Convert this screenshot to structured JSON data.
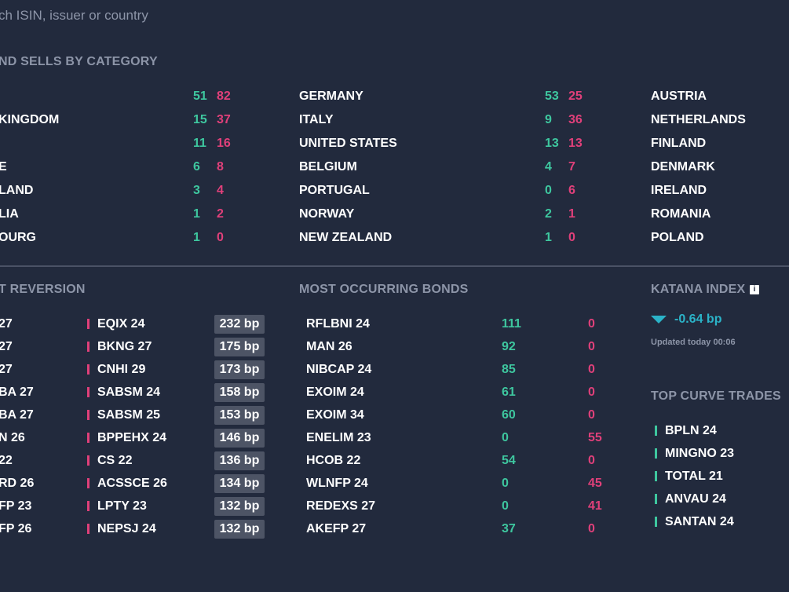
{
  "search": {
    "placeholder": "ch ISIN, issuer or country"
  },
  "categories": {
    "title": "ND SELLS BY CATEGORY",
    "col1": [
      {
        "name": "",
        "buys": "51",
        "sells": "82"
      },
      {
        "name": "KINGDOM",
        "buys": "15",
        "sells": "37"
      },
      {
        "name": "",
        "buys": "11",
        "sells": "16"
      },
      {
        "name": "E",
        "buys": "6",
        "sells": "8"
      },
      {
        "name": "LAND",
        "buys": "3",
        "sells": "4"
      },
      {
        "name": "LIA",
        "buys": "1",
        "sells": "2"
      },
      {
        "name": "OURG",
        "buys": "1",
        "sells": "0"
      }
    ],
    "col2": [
      {
        "name": "GERMANY",
        "buys": "53",
        "sells": "25"
      },
      {
        "name": "ITALY",
        "buys": "9",
        "sells": "36"
      },
      {
        "name": "UNITED STATES",
        "buys": "13",
        "sells": "13"
      },
      {
        "name": "BELGIUM",
        "buys": "4",
        "sells": "7"
      },
      {
        "name": "PORTUGAL",
        "buys": "0",
        "sells": "6"
      },
      {
        "name": "NORWAY",
        "buys": "2",
        "sells": "1"
      },
      {
        "name": "NEW ZEALAND",
        "buys": "1",
        "sells": "0"
      }
    ],
    "col3": [
      {
        "name": "AUSTRIA"
      },
      {
        "name": "NETHERLANDS"
      },
      {
        "name": "FINLAND"
      },
      {
        "name": "DENMARK"
      },
      {
        "name": "IRELAND"
      },
      {
        "name": "ROMANIA"
      },
      {
        "name": "POLAND"
      }
    ]
  },
  "reversion": {
    "title": "T REVERSION",
    "rows": [
      {
        "left": "27",
        "right": "EQIX 24",
        "bp": "232 bp"
      },
      {
        "left": "27",
        "right": "BKNG 27",
        "bp": "175 bp"
      },
      {
        "left": "27",
        "right": "CNHI 29",
        "bp": "173 bp"
      },
      {
        "left": "BA 27",
        "right": "SABSM 24",
        "bp": "158 bp"
      },
      {
        "left": "BA 27",
        "right": "SABSM 25",
        "bp": "153 bp"
      },
      {
        "left": "N 26",
        "right": "BPPEHX 24",
        "bp": "146 bp"
      },
      {
        "left": "22",
        "right": "CS 22",
        "bp": "136 bp"
      },
      {
        "left": "RD 26",
        "right": "ACSSCE 26",
        "bp": "134 bp"
      },
      {
        "left": "FP 23",
        "right": "LPTY 23",
        "bp": "132 bp"
      },
      {
        "left": "FP 26",
        "right": "NEPSJ 24",
        "bp": "132 bp"
      }
    ]
  },
  "bonds": {
    "title": "MOST OCCURRING BONDS",
    "rows": [
      {
        "name": "RFLBNI 24",
        "buys": "111",
        "sells": "0"
      },
      {
        "name": "MAN 26",
        "buys": "92",
        "sells": "0"
      },
      {
        "name": "NIBCAP 24",
        "buys": "85",
        "sells": "0"
      },
      {
        "name": "EXOIM 24",
        "buys": "61",
        "sells": "0"
      },
      {
        "name": "EXOIM 34",
        "buys": "60",
        "sells": "0"
      },
      {
        "name": "ENELIM 23",
        "buys": "0",
        "sells": "55"
      },
      {
        "name": "HCOB 22",
        "buys": "54",
        "sells": "0"
      },
      {
        "name": "WLNFP 24",
        "buys": "0",
        "sells": "45"
      },
      {
        "name": "REDEXS 27",
        "buys": "0",
        "sells": "41"
      },
      {
        "name": "AKEFP 27",
        "buys": "37",
        "sells": "0"
      }
    ]
  },
  "katana": {
    "title": "KATANA INDEX",
    "info_glyph": "i",
    "value": "-0.64 bp",
    "updated": "Updated today 00:06",
    "arrow_color": "#2bb3c8"
  },
  "curve": {
    "title": "TOP CURVE TRADES",
    "items": [
      "BPLN 24",
      "MINGNO 23",
      "TOTAL 21",
      "ANVAU 24",
      "SANTAN 24"
    ]
  },
  "colors": {
    "buy": "#3ec79f",
    "sell": "#e0407a",
    "background": "#222a3d"
  }
}
